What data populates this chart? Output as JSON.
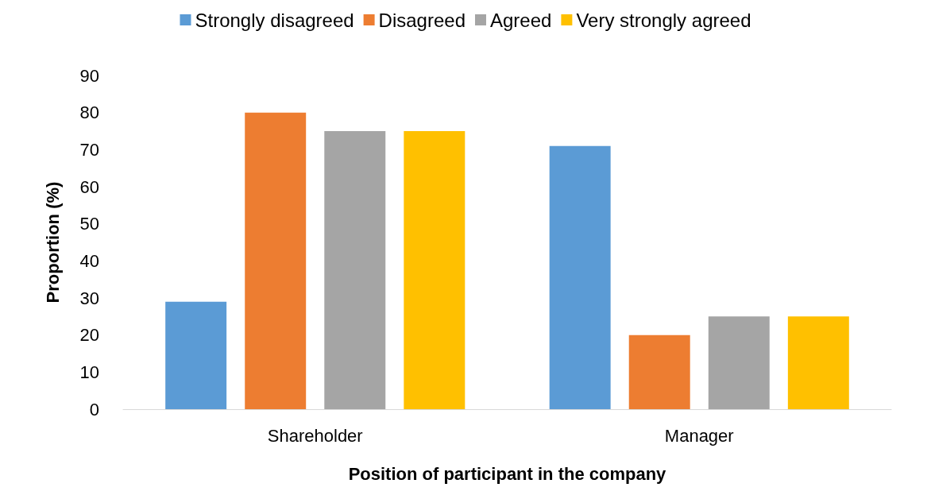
{
  "chart_data": {
    "type": "bar",
    "xlabel": "Position of participant in the company",
    "ylabel": "Proportion (%)",
    "categories": [
      "Shareholder",
      "Manager"
    ],
    "series": [
      {
        "name": "Strongly disagreed",
        "color": "#5b9bd5",
        "values": [
          29,
          71
        ]
      },
      {
        "name": "Disagreed",
        "color": "#ed7d31",
        "values": [
          80,
          20
        ]
      },
      {
        "name": "Agreed",
        "color": "#a5a5a5",
        "values": [
          75,
          25
        ]
      },
      {
        "name": "Very strongly agreed",
        "color": "#ffc000",
        "values": [
          75,
          25
        ]
      }
    ],
    "ylim": [
      0,
      90
    ],
    "yticks": [
      0,
      10,
      20,
      30,
      40,
      50,
      60,
      70,
      80,
      90
    ],
    "grid": false,
    "legend": "top"
  }
}
